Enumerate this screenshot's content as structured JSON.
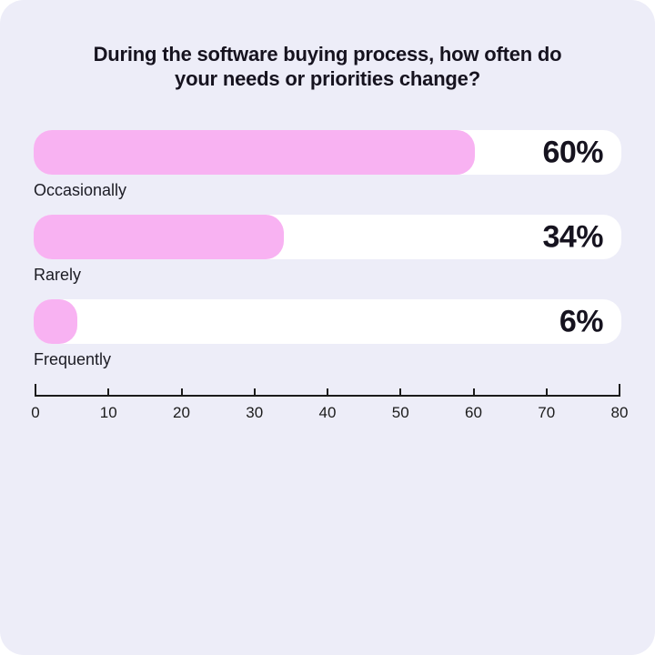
{
  "page": {
    "background": "#ffffff",
    "card_background": "#EDEDF8",
    "text_color": "#16131F"
  },
  "chart_data": {
    "type": "bar",
    "orientation": "horizontal",
    "title": "During the software buying process, how often do your needs or priorities change?",
    "categories": [
      "Occasionally",
      "Rarely",
      "Frequently"
    ],
    "values": [
      60,
      34,
      6
    ],
    "value_labels": [
      "60%",
      "34%",
      "6%"
    ],
    "xlabel": "",
    "ylabel": "",
    "xlim": [
      0,
      80
    ],
    "x_ticks": [
      0,
      10,
      20,
      30,
      40,
      50,
      60,
      70,
      80
    ],
    "bar_color": "#F8B2F2",
    "track_color": "#FFFFFF",
    "axis_color": "#1B1B1B",
    "grid": "off",
    "legend": "none"
  }
}
